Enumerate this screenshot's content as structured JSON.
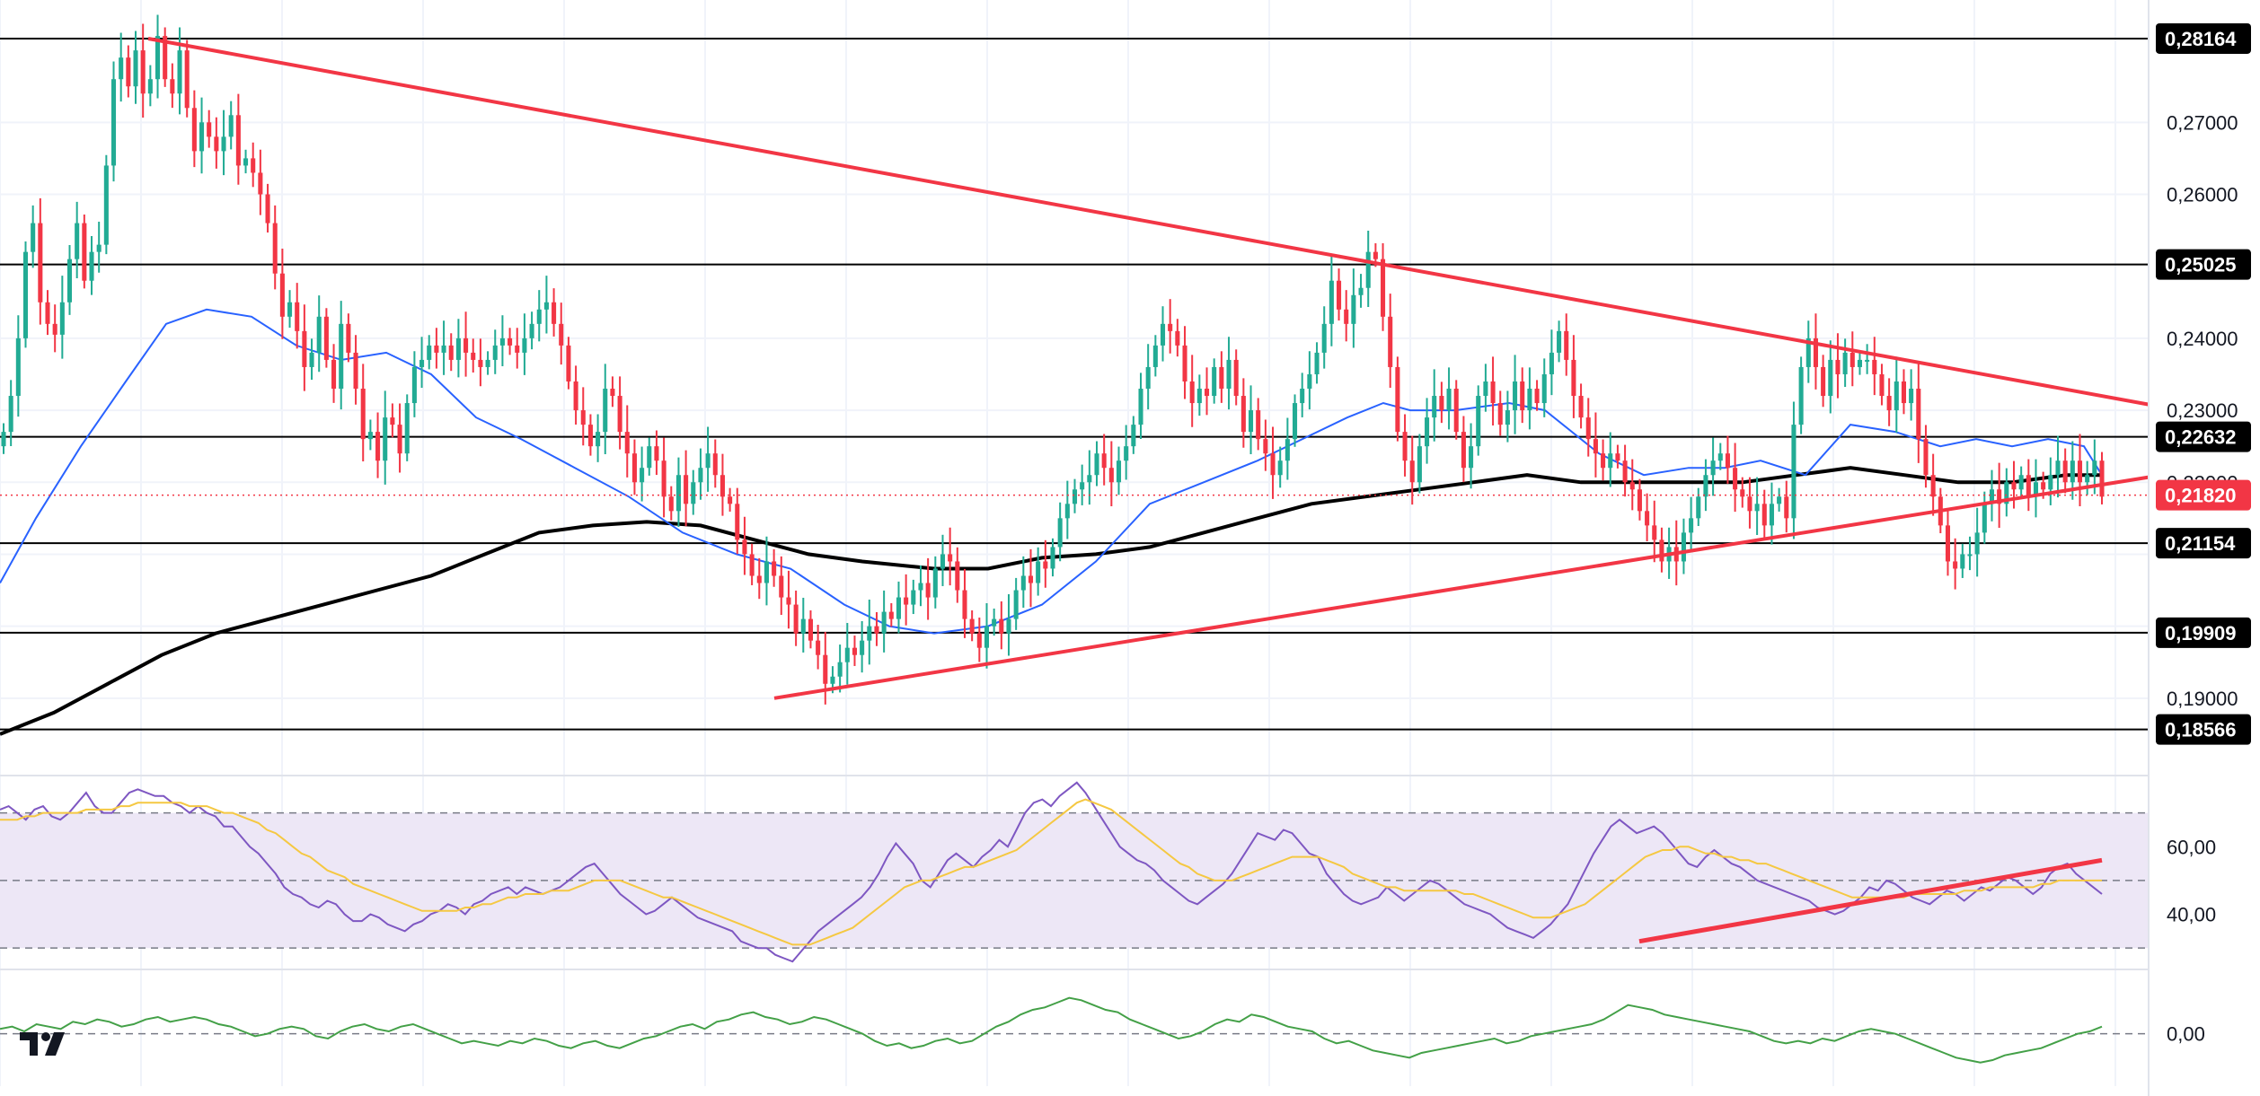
{
  "chart_data": {
    "type": "candlestick",
    "colors": {
      "up": "#22ab94",
      "down": "#f23645",
      "trendline": "#f23645",
      "ema_fast": "#2962ff",
      "ema_slow": "#000000",
      "rsi_line": "#7e57c2",
      "rsi_ma": "#f5c842",
      "rsi_band": "#ede7f6",
      "momentum": "#43a047",
      "level_line": "#000000",
      "last_price": "#f23645"
    },
    "price_axis": {
      "range": [
        0.18,
        0.287
      ],
      "ticks": [
        "0,27000",
        "0,26000",
        "0,24000",
        "0,23000",
        "0,22000",
        "0,19000"
      ]
    },
    "levels": [
      {
        "value": 0.28164,
        "label": "0,28164"
      },
      {
        "value": 0.25025,
        "label": "0,25025"
      },
      {
        "value": 0.22632,
        "label": "0,22632"
      },
      {
        "value": 0.21154,
        "label": "0,21154"
      },
      {
        "value": 0.19909,
        "label": "0,19909"
      },
      {
        "value": 0.18566,
        "label": "0,18566"
      }
    ],
    "last_price": {
      "value": 0.2182,
      "label": "0,21820"
    },
    "closes": [
      0.227,
      0.232,
      0.24,
      0.252,
      0.256,
      0.245,
      0.242,
      0.2405,
      0.245,
      0.251,
      0.256,
      0.248,
      0.252,
      0.253,
      0.264,
      0.276,
      0.279,
      0.275,
      0.28,
      0.274,
      0.276,
      0.282,
      0.276,
      0.274,
      0.28,
      0.272,
      0.266,
      0.27,
      0.268,
      0.266,
      0.268,
      0.271,
      0.264,
      0.265,
      0.263,
      0.26,
      0.256,
      0.249,
      0.243,
      0.245,
      0.241,
      0.236,
      0.238,
      0.243,
      0.237,
      0.233,
      0.242,
      0.238,
      0.233,
      0.226,
      0.227,
      0.223,
      0.229,
      0.228,
      0.224,
      0.231,
      0.236,
      0.237,
      0.239,
      0.238,
      0.239,
      0.237,
      0.24,
      0.238,
      0.237,
      0.236,
      0.237,
      0.239,
      0.24,
      0.239,
      0.238,
      0.24,
      0.242,
      0.244,
      0.245,
      0.242,
      0.239,
      0.234,
      0.23,
      0.228,
      0.225,
      0.227,
      0.233,
      0.232,
      0.227,
      0.224,
      0.22,
      0.222,
      0.225,
      0.223,
      0.218,
      0.216,
      0.221,
      0.217,
      0.22,
      0.222,
      0.224,
      0.221,
      0.218,
      0.217,
      0.212,
      0.21,
      0.207,
      0.206,
      0.209,
      0.207,
      0.204,
      0.203,
      0.199,
      0.201,
      0.198,
      0.196,
      0.192,
      0.193,
      0.195,
      0.197,
      0.196,
      0.198,
      0.2,
      0.199,
      0.202,
      0.201,
      0.204,
      0.203,
      0.205,
      0.206,
      0.204,
      0.208,
      0.21,
      0.209,
      0.205,
      0.201,
      0.199,
      0.197,
      0.2,
      0.201,
      0.199,
      0.201,
      0.205,
      0.207,
      0.206,
      0.209,
      0.208,
      0.211,
      0.215,
      0.217,
      0.219,
      0.22,
      0.221,
      0.224,
      0.222,
      0.22,
      0.223,
      0.225,
      0.228,
      0.233,
      0.236,
      0.239,
      0.242,
      0.241,
      0.239,
      0.234,
      0.231,
      0.233,
      0.232,
      0.236,
      0.233,
      0.237,
      0.232,
      0.227,
      0.23,
      0.226,
      0.224,
      0.221,
      0.223,
      0.226,
      0.231,
      0.233,
      0.235,
      0.238,
      0.242,
      0.248,
      0.244,
      0.242,
      0.246,
      0.247,
      0.252,
      0.251,
      0.243,
      0.236,
      0.227,
      0.223,
      0.22,
      0.225,
      0.229,
      0.232,
      0.23,
      0.233,
      0.227,
      0.222,
      0.225,
      0.232,
      0.234,
      0.231,
      0.228,
      0.23,
      0.234,
      0.23,
      0.233,
      0.231,
      0.235,
      0.238,
      0.241,
      0.237,
      0.232,
      0.229,
      0.226,
      0.224,
      0.222,
      0.224,
      0.223,
      0.22,
      0.219,
      0.216,
      0.214,
      0.212,
      0.209,
      0.211,
      0.209,
      0.213,
      0.215,
      0.218,
      0.221,
      0.223,
      0.224,
      0.222,
      0.219,
      0.218,
      0.216,
      0.217,
      0.214,
      0.217,
      0.218,
      0.215,
      0.228,
      0.236,
      0.24,
      0.236,
      0.232,
      0.237,
      0.235,
      0.238,
      0.236,
      0.237,
      0.237,
      0.235,
      0.232,
      0.23,
      0.234,
      0.231,
      0.233,
      0.226,
      0.221,
      0.218,
      0.214,
      0.209,
      0.208,
      0.21,
      0.21,
      0.213,
      0.217,
      0.219,
      0.217,
      0.22,
      0.219,
      0.221,
      0.218,
      0.22,
      0.219,
      0.221,
      0.223,
      0.22,
      0.223,
      0.22,
      0.221,
      0.223,
      0.218
    ],
    "ema_fast_points": [
      [
        0,
        0.206
      ],
      [
        40,
        0.215
      ],
      [
        90,
        0.225
      ],
      [
        140,
        0.234
      ],
      [
        185,
        0.242
      ],
      [
        230,
        0.244
      ],
      [
        280,
        0.243
      ],
      [
        330,
        0.239
      ],
      [
        380,
        0.237
      ],
      [
        430,
        0.238
      ],
      [
        480,
        0.235
      ],
      [
        530,
        0.229
      ],
      [
        580,
        0.226
      ],
      [
        640,
        0.222
      ],
      [
        700,
        0.218
      ],
      [
        760,
        0.213
      ],
      [
        820,
        0.21
      ],
      [
        880,
        0.208
      ],
      [
        940,
        0.203
      ],
      [
        990,
        0.2
      ],
      [
        1040,
        0.199
      ],
      [
        1100,
        0.2
      ],
      [
        1160,
        0.203
      ],
      [
        1220,
        0.209
      ],
      [
        1280,
        0.217
      ],
      [
        1340,
        0.22
      ],
      [
        1400,
        0.223
      ],
      [
        1450,
        0.226
      ],
      [
        1500,
        0.229
      ],
      [
        1540,
        0.231
      ],
      [
        1570,
        0.23
      ],
      [
        1620,
        0.23
      ],
      [
        1680,
        0.231
      ],
      [
        1720,
        0.23
      ],
      [
        1780,
        0.224
      ],
      [
        1830,
        0.221
      ],
      [
        1880,
        0.222
      ],
      [
        1920,
        0.222
      ],
      [
        1960,
        0.223
      ],
      [
        2010,
        0.221
      ],
      [
        2060,
        0.228
      ],
      [
        2110,
        0.227
      ],
      [
        2160,
        0.225
      ],
      [
        2200,
        0.226
      ],
      [
        2240,
        0.225
      ],
      [
        2280,
        0.226
      ],
      [
        2320,
        0.225
      ],
      [
        2340,
        0.221
      ]
    ],
    "ema_slow_points": [
      [
        0,
        0.185
      ],
      [
        60,
        0.188
      ],
      [
        120,
        0.192
      ],
      [
        180,
        0.196
      ],
      [
        240,
        0.199
      ],
      [
        300,
        0.201
      ],
      [
        360,
        0.203
      ],
      [
        420,
        0.205
      ],
      [
        480,
        0.207
      ],
      [
        540,
        0.21
      ],
      [
        600,
        0.213
      ],
      [
        660,
        0.214
      ],
      [
        720,
        0.2145
      ],
      [
        780,
        0.214
      ],
      [
        840,
        0.212
      ],
      [
        900,
        0.21
      ],
      [
        960,
        0.209
      ],
      [
        1040,
        0.208
      ],
      [
        1100,
        0.208
      ],
      [
        1160,
        0.2095
      ],
      [
        1220,
        0.21
      ],
      [
        1280,
        0.211
      ],
      [
        1340,
        0.213
      ],
      [
        1400,
        0.215
      ],
      [
        1460,
        0.217
      ],
      [
        1520,
        0.218
      ],
      [
        1580,
        0.219
      ],
      [
        1640,
        0.22
      ],
      [
        1700,
        0.221
      ],
      [
        1760,
        0.22
      ],
      [
        1820,
        0.22
      ],
      [
        1880,
        0.22
      ],
      [
        1940,
        0.22
      ],
      [
        2000,
        0.221
      ],
      [
        2060,
        0.222
      ],
      [
        2120,
        0.221
      ],
      [
        2180,
        0.22
      ],
      [
        2240,
        0.22
      ],
      [
        2300,
        0.221
      ],
      [
        2340,
        0.221
      ]
    ],
    "trendlines": [
      {
        "from": [
          165,
          0.28164
        ],
        "to": [
          2392,
          0.2308
        ]
      },
      {
        "from": [
          862,
          0.19
        ],
        "to": [
          2392,
          0.2207
        ]
      }
    ],
    "rsi": {
      "ticks": [
        "60,00",
        "40,00"
      ],
      "range": [
        25,
        80
      ],
      "upper": 70,
      "mid": 50,
      "lower": 30,
      "values": [
        71,
        72,
        70,
        68,
        71,
        72,
        69,
        68,
        70,
        73,
        76,
        72,
        70,
        70,
        73,
        76,
        77,
        76,
        75,
        75,
        73,
        72,
        70,
        72,
        70,
        69,
        66,
        66,
        63,
        60,
        58,
        55,
        52,
        48,
        46,
        45,
        43,
        42,
        44,
        43,
        40,
        38,
        38,
        40,
        39,
        37,
        36,
        35,
        37,
        38,
        40,
        41,
        43,
        42,
        40,
        43,
        44,
        46,
        47,
        48,
        46,
        48,
        47,
        46,
        47,
        48,
        50,
        52,
        54,
        55,
        52,
        49,
        46,
        44,
        42,
        40,
        41,
        43,
        45,
        43,
        41,
        39,
        38,
        37,
        36,
        35,
        32,
        31,
        30,
        30,
        28,
        27,
        26,
        29,
        32,
        35,
        37,
        39,
        41,
        43,
        45,
        48,
        52,
        57,
        61,
        58,
        55,
        50,
        48,
        52,
        56,
        58,
        56,
        54,
        57,
        59,
        62,
        60,
        65,
        70,
        73,
        74,
        72,
        75,
        77,
        79,
        76,
        72,
        68,
        64,
        60,
        58,
        56,
        55,
        53,
        50,
        48,
        46,
        44,
        43,
        45,
        47,
        49,
        52,
        56,
        60,
        64,
        63,
        62,
        65,
        64,
        61,
        58,
        57,
        52,
        49,
        46,
        44,
        43,
        44,
        45,
        48,
        46,
        44,
        46,
        48,
        50,
        49,
        47,
        45,
        43,
        42,
        41,
        40,
        38,
        36,
        35,
        34,
        33,
        35,
        37,
        40,
        43,
        48,
        53,
        58,
        62,
        66,
        68,
        66,
        64,
        65,
        66,
        64,
        61,
        58,
        55,
        54,
        57,
        59,
        57,
        55,
        54,
        52,
        50,
        49,
        48,
        47,
        46,
        45,
        44,
        42,
        41,
        40,
        41,
        43,
        45,
        48,
        47,
        50,
        49,
        47,
        45,
        44,
        43,
        45,
        47,
        46,
        44,
        46,
        48,
        47,
        49,
        51,
        50,
        48,
        46,
        48,
        52,
        54,
        55,
        52,
        50,
        48,
        46
      ],
      "ma_values": [
        68,
        68,
        68,
        69,
        69,
        70,
        70,
        70,
        70,
        70,
        71,
        71,
        71,
        71,
        72,
        72,
        73,
        73,
        73,
        73,
        73,
        73,
        72,
        72,
        72,
        71,
        70,
        70,
        69,
        68,
        67,
        65,
        64,
        62,
        60,
        58,
        57,
        55,
        53,
        52,
        51,
        49,
        48,
        47,
        46,
        45,
        44,
        43,
        42,
        41,
        41,
        41,
        41,
        41,
        42,
        42,
        43,
        43,
        44,
        45,
        45,
        46,
        46,
        46,
        47,
        47,
        47,
        48,
        49,
        50,
        50,
        50,
        50,
        49,
        48,
        47,
        46,
        45,
        45,
        44,
        43,
        42,
        41,
        40,
        39,
        38,
        37,
        36,
        35,
        34,
        33,
        32,
        31,
        31,
        31,
        32,
        33,
        34,
        35,
        36,
        38,
        40,
        42,
        44,
        46,
        48,
        49,
        50,
        50,
        51,
        52,
        53,
        54,
        54,
        55,
        56,
        57,
        58,
        59,
        61,
        63,
        65,
        67,
        69,
        71,
        73,
        74,
        73,
        72,
        71,
        69,
        67,
        65,
        63,
        61,
        59,
        57,
        55,
        54,
        52,
        51,
        50,
        50,
        50,
        51,
        52,
        53,
        54,
        55,
        56,
        57,
        57,
        57,
        57,
        56,
        55,
        54,
        52,
        51,
        50,
        49,
        48,
        48,
        47,
        47,
        47,
        47,
        47,
        47,
        47,
        46,
        46,
        45,
        44,
        43,
        42,
        41,
        40,
        39,
        39,
        39,
        40,
        41,
        42,
        43,
        45,
        47,
        49,
        51,
        53,
        55,
        57,
        58,
        59,
        59,
        60,
        60,
        59,
        58,
        58,
        57,
        57,
        56,
        56,
        55,
        55,
        54,
        53,
        52,
        51,
        50,
        49,
        48,
        47,
        46,
        45,
        45,
        45,
        45,
        45,
        45,
        45,
        46,
        46,
        46,
        46,
        46,
        46,
        47,
        47,
        47,
        48,
        48,
        48,
        48,
        48,
        48,
        49,
        49,
        50,
        50,
        50,
        50,
        50,
        50
      ],
      "trendline": {
        "from": [
          1825,
          32
        ],
        "to": [
          2340,
          56
        ]
      }
    },
    "momentum": {
      "tick": "0,00",
      "range": [
        -0.02,
        0.025
      ],
      "values": [
        0.002,
        0.003,
        0.001,
        0.004,
        0.003,
        0.002,
        0.005,
        0.004,
        0.006,
        0.005,
        0.003,
        0.004,
        0.006,
        0.007,
        0.005,
        0.006,
        0.007,
        0.006,
        0.004,
        0.003,
        0.001,
        -0.001,
        0.0,
        0.002,
        0.003,
        0.002,
        -0.001,
        -0.002,
        0.001,
        0.003,
        0.004,
        0.002,
        0.001,
        0.003,
        0.004,
        0.002,
        0.0,
        -0.002,
        -0.004,
        -0.003,
        -0.004,
        -0.005,
        -0.003,
        -0.004,
        -0.002,
        -0.003,
        -0.005,
        -0.006,
        -0.004,
        -0.003,
        -0.005,
        -0.006,
        -0.004,
        -0.002,
        -0.001,
        0.001,
        0.003,
        0.004,
        0.002,
        0.005,
        0.006,
        0.008,
        0.009,
        0.007,
        0.006,
        0.004,
        0.005,
        0.007,
        0.006,
        0.004,
        0.002,
        0.0,
        -0.003,
        -0.005,
        -0.004,
        -0.006,
        -0.005,
        -0.003,
        -0.002,
        -0.004,
        -0.003,
        0.0,
        0.003,
        0.005,
        0.008,
        0.01,
        0.011,
        0.013,
        0.015,
        0.014,
        0.012,
        0.01,
        0.009,
        0.006,
        0.004,
        0.002,
        0.0,
        -0.002,
        -0.001,
        0.001,
        0.004,
        0.006,
        0.005,
        0.008,
        0.007,
        0.005,
        0.003,
        0.002,
        0.001,
        -0.002,
        -0.004,
        -0.003,
        -0.005,
        -0.007,
        -0.008,
        -0.009,
        -0.01,
        -0.008,
        -0.007,
        -0.006,
        -0.005,
        -0.004,
        -0.003,
        -0.002,
        -0.004,
        -0.003,
        -0.001,
        0.0,
        0.001,
        0.002,
        0.003,
        0.004,
        0.006,
        0.009,
        0.012,
        0.011,
        0.01,
        0.008,
        0.007,
        0.006,
        0.005,
        0.004,
        0.003,
        0.002,
        0.001,
        -0.001,
        -0.003,
        -0.004,
        -0.003,
        -0.004,
        -0.002,
        -0.003,
        -0.001,
        0.001,
        0.002,
        0.001,
        0.0,
        -0.002,
        -0.004,
        -0.006,
        -0.008,
        -0.01,
        -0.011,
        -0.012,
        -0.011,
        -0.009,
        -0.008,
        -0.007,
        -0.006,
        -0.004,
        -0.002,
        0.0,
        0.001,
        0.003
      ],
      "zero": 0
    }
  }
}
